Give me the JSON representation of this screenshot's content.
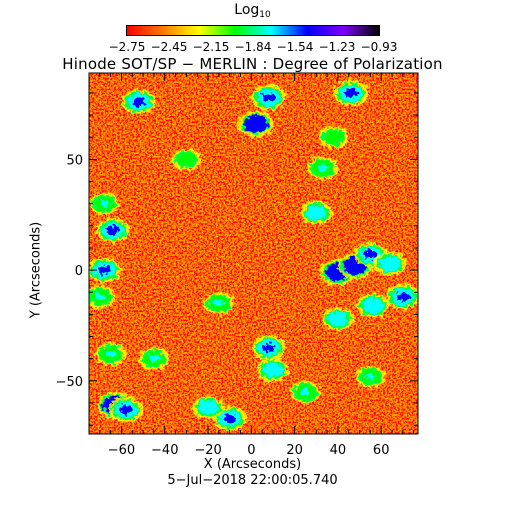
{
  "colorbar": {
    "label": "Log",
    "label_sub": "10",
    "ticks": [
      "−2.75",
      "−2.45",
      "−2.15",
      "−1.84",
      "−1.54",
      "−1.23",
      "−0.93"
    ],
    "range": [
      -2.75,
      -0.93
    ],
    "colors": [
      "#ff0000",
      "#ff7a00",
      "#ffff00",
      "#00ff00",
      "#00ffff",
      "#0000ff",
      "#8000ff",
      "#000000"
    ]
  },
  "chart_data": {
    "type": "heatmap",
    "title": "Hinode SOT/SP − MERLIN : Degree of Polarization",
    "xlabel": "X (Arcseconds)",
    "ylabel": "Y (Arcseconds)",
    "xlim": [
      -75,
      77
    ],
    "ylim": [
      -74,
      89
    ],
    "xticks": [
      -60,
      -40,
      -20,
      0,
      20,
      40,
      60
    ],
    "yticks": [
      -50,
      0,
      50
    ],
    "value_range": [
      -2.75,
      -0.93
    ],
    "background_level": -2.7,
    "features": [
      {
        "x": 2,
        "y": 66,
        "level": -1.35
      },
      {
        "x": 8,
        "y": 78,
        "level": -1.5
      },
      {
        "x": 46,
        "y": 80,
        "level": -1.5
      },
      {
        "x": -52,
        "y": 76,
        "level": -1.55
      },
      {
        "x": 33,
        "y": 46,
        "level": -1.9
      },
      {
        "x": -68,
        "y": 30,
        "level": -2.0
      },
      {
        "x": -64,
        "y": 18,
        "level": -1.6
      },
      {
        "x": -68,
        "y": 0,
        "level": -1.55
      },
      {
        "x": -70,
        "y": -12,
        "level": -1.9
      },
      {
        "x": 40,
        "y": -1,
        "level": -1.3
      },
      {
        "x": 48,
        "y": 2,
        "level": -1.35
      },
      {
        "x": 55,
        "y": 7,
        "level": -1.6
      },
      {
        "x": 30,
        "y": 26,
        "level": -1.8
      },
      {
        "x": 64,
        "y": 3,
        "level": -1.7
      },
      {
        "x": 70,
        "y": -12,
        "level": -1.5
      },
      {
        "x": 56,
        "y": -16,
        "level": -1.7
      },
      {
        "x": 40,
        "y": -22,
        "level": -1.8
      },
      {
        "x": -15,
        "y": -15,
        "level": -1.95
      },
      {
        "x": 8,
        "y": -35,
        "level": -1.6
      },
      {
        "x": 10,
        "y": -45,
        "level": -1.8
      },
      {
        "x": -45,
        "y": -40,
        "level": -1.9
      },
      {
        "x": -65,
        "y": -38,
        "level": -1.9
      },
      {
        "x": -63,
        "y": -61,
        "level": -1.3
      },
      {
        "x": -58,
        "y": -63,
        "level": -1.5
      },
      {
        "x": -10,
        "y": -67,
        "level": -1.6
      },
      {
        "x": -20,
        "y": -62,
        "level": -1.8
      },
      {
        "x": 25,
        "y": -55,
        "level": -1.9
      },
      {
        "x": 55,
        "y": -48,
        "level": -2.0
      },
      {
        "x": -30,
        "y": 50,
        "level": -2.05
      },
      {
        "x": 38,
        "y": 60,
        "level": -2.05
      }
    ]
  },
  "footer": {
    "date": "5−Jul−2018 22:00:05.740"
  }
}
